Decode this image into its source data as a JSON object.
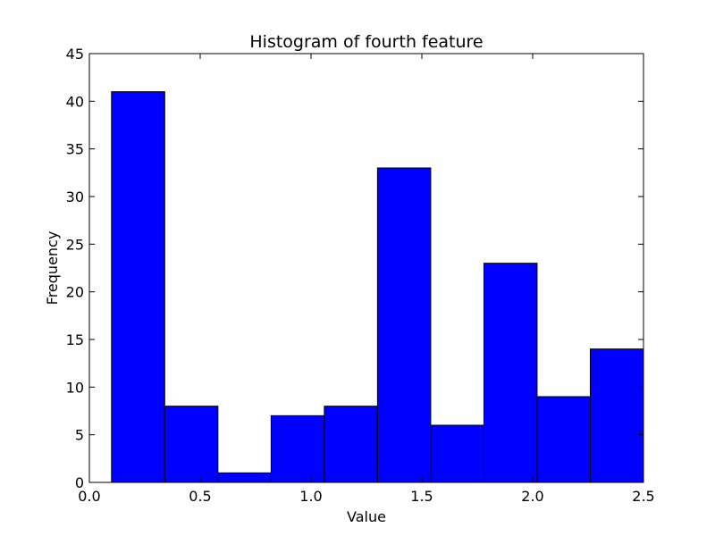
{
  "chart_data": {
    "type": "bar",
    "title": "Histogram of fourth feature",
    "xlabel": "Value",
    "ylabel": "Frequency",
    "xlim": [
      0.0,
      2.5
    ],
    "ylim": [
      0,
      45
    ],
    "bins": [
      {
        "x0": 0.1,
        "x1": 0.34,
        "count": 41
      },
      {
        "x0": 0.34,
        "x1": 0.58,
        "count": 8
      },
      {
        "x0": 0.58,
        "x1": 0.82,
        "count": 1
      },
      {
        "x0": 0.82,
        "x1": 1.06,
        "count": 7
      },
      {
        "x0": 1.06,
        "x1": 1.3,
        "count": 8
      },
      {
        "x0": 1.3,
        "x1": 1.54,
        "count": 33
      },
      {
        "x0": 1.54,
        "x1": 1.78,
        "count": 6
      },
      {
        "x0": 1.78,
        "x1": 2.02,
        "count": 23
      },
      {
        "x0": 2.02,
        "x1": 2.26,
        "count": 9
      },
      {
        "x0": 2.26,
        "x1": 2.5,
        "count": 14
      }
    ],
    "x_ticks": [
      "0.0",
      "0.5",
      "1.0",
      "1.5",
      "2.0",
      "2.5"
    ],
    "y_ticks": [
      "0",
      "5",
      "10",
      "15",
      "20",
      "25",
      "30",
      "35",
      "40",
      "45"
    ],
    "bar_color": "#0000ff",
    "edge_color": "#000000",
    "grid": false,
    "legend": "none"
  }
}
